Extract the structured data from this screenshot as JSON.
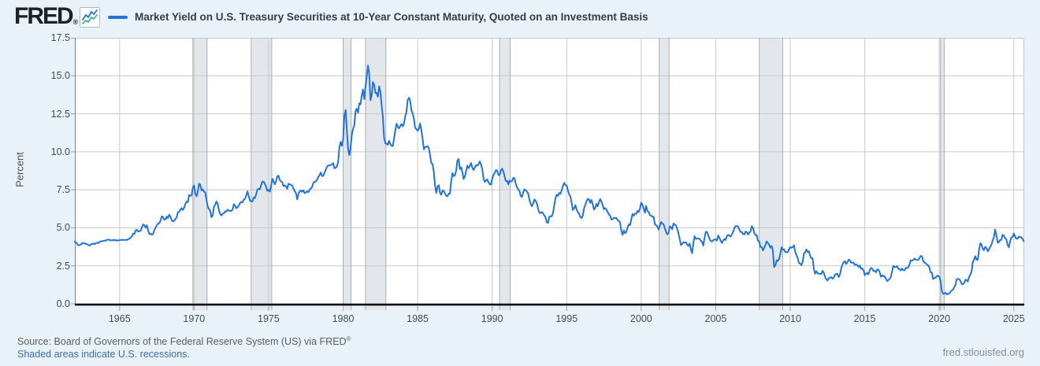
{
  "header": {
    "logo_text": "FRED",
    "logo_mark": "®",
    "title": "Market Yield on U.S. Treasury Securities at 10-Year Constant Maturity, Quoted on an Investment Basis"
  },
  "footer": {
    "source": "Source: Board of Governors of the Federal Reserve System (US) via FRED",
    "source_mark": "®",
    "recession_note": "Shaded areas indicate U.S. recessions.",
    "site": "fred.stlouisfed.org"
  },
  "chart_data": {
    "type": "line",
    "title": "Market Yield on U.S. Treasury Securities at 10-Year Constant Maturity, Quoted on an Investment Basis",
    "ylabel": "Percent",
    "frequency": "monthly",
    "start_year": 1962,
    "x_range": [
      1962.0,
      2025.7
    ],
    "y_range": [
      0,
      17.5
    ],
    "x_ticks": [
      1965,
      1970,
      1975,
      1980,
      1985,
      1990,
      1995,
      2000,
      2005,
      2010,
      2015,
      2020,
      2025
    ],
    "y_ticks": [
      0,
      2.5,
      5,
      7.5,
      10,
      12.5,
      15,
      17.5
    ],
    "y_tick_labels": [
      "0.0",
      "2.5",
      "5.0",
      "7.5",
      "10.0",
      "12.5",
      "15.0",
      "17.5"
    ],
    "grid": true,
    "legend_position": "top",
    "line_color": "#2273d8",
    "recession_color": "#e3e7eb",
    "recession_edge_color": "#a9afb5",
    "recessions": [
      [
        1969.92,
        1970.87
      ],
      [
        1973.83,
        1975.21
      ],
      [
        1980.0,
        1980.54
      ],
      [
        1981.5,
        1982.87
      ],
      [
        1990.5,
        1991.21
      ],
      [
        2001.21,
        2001.87
      ],
      [
        2007.92,
        2009.5
      ],
      [
        2020.08,
        2020.33
      ]
    ],
    "values": [
      4.08,
      4.04,
      3.93,
      3.84,
      3.87,
      3.91,
      4.01,
      3.98,
      3.98,
      3.93,
      3.92,
      3.86,
      3.83,
      3.92,
      3.93,
      3.97,
      3.93,
      3.99,
      4.02,
      4.0,
      4.08,
      4.11,
      4.12,
      4.13,
      4.17,
      4.15,
      4.22,
      4.23,
      4.2,
      4.17,
      4.19,
      4.19,
      4.2,
      4.19,
      4.15,
      4.18,
      4.19,
      4.21,
      4.21,
      4.2,
      4.21,
      4.21,
      4.2,
      4.25,
      4.29,
      4.35,
      4.45,
      4.62,
      4.61,
      4.83,
      4.87,
      4.75,
      4.78,
      4.81,
      5.02,
      5.22,
      5.18,
      5.01,
      5.16,
      4.84,
      4.58,
      4.63,
      4.54,
      4.59,
      4.85,
      5.02,
      5.16,
      5.28,
      5.3,
      5.48,
      5.75,
      5.7,
      5.53,
      5.56,
      5.74,
      5.64,
      5.87,
      5.72,
      5.5,
      5.42,
      5.46,
      5.58,
      5.7,
      6.03,
      6.04,
      6.19,
      6.3,
      6.17,
      6.32,
      6.57,
      6.72,
      6.69,
      7.16,
      7.1,
      7.14,
      7.65,
      7.79,
      7.24,
      7.07,
      7.39,
      7.91,
      7.84,
      7.46,
      7.53,
      7.39,
      7.33,
      6.84,
      6.39,
      6.24,
      6.11,
      5.7,
      5.83,
      6.39,
      6.52,
      6.73,
      6.58,
      6.14,
      5.93,
      5.81,
      5.93,
      5.95,
      6.08,
      6.07,
      6.19,
      6.13,
      6.11,
      6.11,
      6.21,
      6.55,
      6.48,
      6.28,
      6.36,
      6.46,
      6.64,
      6.71,
      6.67,
      6.85,
      6.9,
      7.13,
      7.4,
      7.09,
      6.79,
      6.73,
      6.74,
      6.99,
      6.96,
      7.21,
      7.51,
      7.58,
      7.54,
      7.81,
      8.04,
      8.04,
      7.9,
      7.68,
      7.43,
      7.5,
      7.39,
      7.73,
      8.23,
      8.06,
      7.86,
      8.06,
      8.4,
      8.43,
      8.14,
      8.05,
      8.0,
      7.74,
      7.79,
      7.73,
      7.56,
      7.9,
      7.86,
      7.83,
      7.77,
      7.59,
      7.41,
      7.29,
      6.87,
      7.21,
      7.39,
      7.46,
      7.37,
      7.46,
      7.28,
      7.33,
      7.4,
      7.34,
      7.52,
      7.58,
      7.69,
      7.96,
      8.03,
      8.04,
      8.15,
      8.35,
      8.46,
      8.64,
      8.41,
      8.42,
      8.64,
      8.81,
      9.01,
      9.1,
      9.1,
      9.12,
      9.18,
      9.25,
      8.91,
      8.95,
      9.03,
      9.33,
      10.3,
      10.65,
      10.39,
      10.8,
      12.41,
      12.75,
      11.47,
      10.18,
      9.78,
      10.25,
      11.1,
      11.51,
      11.75,
      12.68,
      12.84,
      12.57,
      13.19,
      13.12,
      13.68,
      14.1,
      13.47,
      14.28,
      14.94,
      15.68,
      15.15,
      13.39,
      13.72,
      14.59,
      14.43,
      13.86,
      13.87,
      13.62,
      14.3,
      13.95,
      13.06,
      12.34,
      10.91,
      10.55,
      10.54,
      10.46,
      10.72,
      10.51,
      10.4,
      10.38,
      10.85,
      11.38,
      11.85,
      11.65,
      11.54,
      11.69,
      11.83,
      11.67,
      11.84,
      12.32,
      12.63,
      13.41,
      13.56,
      13.36,
      12.72,
      12.52,
      12.16,
      11.57,
      11.5,
      11.38,
      11.51,
      11.86,
      11.43,
      10.85,
      10.16,
      10.31,
      10.33,
      10.37,
      10.24,
      9.78,
      9.26,
      9.19,
      8.7,
      7.78,
      7.3,
      7.71,
      7.8,
      7.3,
      7.17,
      7.45,
      7.43,
      7.25,
      7.11,
      7.08,
      7.25,
      7.25,
      8.02,
      8.61,
      8.4,
      8.45,
      8.76,
      9.42,
      9.52,
      8.86,
      8.99,
      8.67,
      8.21,
      8.37,
      8.72,
      9.09,
      8.92,
      9.06,
      9.26,
      8.98,
      8.8,
      8.96,
      9.11,
      9.09,
      9.17,
      9.36,
      9.18,
      8.86,
      8.28,
      8.02,
      8.11,
      8.19,
      8.01,
      7.87,
      7.84,
      8.21,
      8.47,
      8.59,
      8.79,
      8.76,
      8.48,
      8.47,
      8.75,
      8.89,
      8.72,
      8.39,
      8.08,
      8.09,
      7.85,
      8.11,
      8.04,
      8.07,
      8.28,
      8.27,
      7.9,
      7.65,
      7.53,
      7.42,
      7.09,
      7.03,
      7.34,
      7.54,
      7.48,
      7.39,
      7.26,
      6.84,
      6.59,
      6.42,
      6.59,
      6.87,
      6.77,
      6.6,
      6.26,
      5.98,
      5.97,
      6.04,
      5.96,
      5.81,
      5.68,
      5.36,
      5.33,
      5.72,
      5.77,
      5.75,
      5.97,
      6.48,
      6.97,
      7.18,
      7.1,
      7.3,
      7.24,
      7.46,
      7.74,
      7.96,
      7.81,
      7.78,
      7.47,
      7.2,
      7.06,
      6.63,
      6.17,
      6.28,
      6.49,
      6.2,
      6.04,
      5.93,
      5.71,
      5.65,
      5.81,
      6.27,
      6.51,
      6.74,
      6.91,
      6.87,
      6.64,
      6.83,
      6.53,
      6.2,
      6.3,
      6.58,
      6.42,
      6.69,
      6.89,
      6.71,
      6.49,
      6.22,
      6.3,
      6.21,
      6.03,
      5.88,
      5.81,
      5.54,
      5.57,
      5.65,
      5.64,
      5.65,
      5.5,
      5.46,
      5.34,
      4.81,
      4.53,
      4.83,
      4.65,
      4.72,
      5.0,
      5.23,
      5.18,
      5.54,
      5.9,
      5.79,
      5.94,
      5.92,
      6.11,
      6.03,
      6.28,
      6.66,
      6.52,
      6.26,
      5.99,
      6.44,
      6.1,
      6.05,
      5.83,
      5.8,
      5.74,
      5.72,
      5.24,
      5.16,
      5.1,
      4.89,
      5.14,
      5.39,
      5.28,
      5.24,
      4.97,
      4.73,
      4.57,
      4.65,
      5.09,
      5.04,
      4.91,
      5.28,
      5.21,
      5.16,
      4.93,
      4.65,
      4.26,
      3.87,
      3.94,
      4.05,
      4.03,
      4.05,
      3.9,
      3.81,
      3.96,
      3.57,
      3.33,
      3.98,
      4.45,
      4.27,
      4.29,
      4.3,
      4.27,
      4.15,
      4.08,
      3.83,
      4.35,
      4.72,
      4.73,
      4.5,
      4.28,
      4.13,
      4.1,
      4.19,
      4.23,
      4.22,
      4.17,
      4.5,
      4.34,
      4.14,
      4.0,
      4.18,
      4.26,
      4.2,
      4.46,
      4.54,
      4.47,
      4.42,
      4.57,
      4.72,
      4.99,
      5.11,
      5.11,
      5.09,
      4.88,
      4.72,
      4.73,
      4.6,
      4.56,
      4.76,
      4.72,
      4.56,
      4.69,
      4.75,
      5.1,
      5.0,
      4.67,
      4.52,
      4.53,
      4.15,
      4.1,
      3.74,
      3.74,
      3.51,
      3.68,
      3.88,
      4.1,
      4.01,
      3.89,
      3.69,
      3.81,
      3.53,
      2.42,
      2.52,
      2.87,
      2.82,
      2.93,
      3.29,
      3.72,
      3.56,
      3.59,
      3.4,
      3.39,
      3.4,
      3.59,
      3.73,
      3.69,
      3.73,
      3.85,
      3.42,
      3.2,
      3.01,
      2.7,
      2.65,
      2.54,
      2.76,
      3.29,
      3.39,
      3.58,
      3.41,
      3.46,
      3.17,
      3.0,
      3.0,
      2.3,
      1.98,
      2.15,
      2.01,
      1.98,
      1.97,
      1.97,
      2.17,
      2.05,
      1.8,
      1.62,
      1.53,
      1.68,
      1.72,
      1.75,
      1.65,
      1.72,
      1.91,
      1.98,
      1.96,
      1.76,
      1.93,
      2.3,
      2.58,
      2.74,
      2.81,
      2.62,
      2.72,
      2.9,
      2.86,
      2.71,
      2.72,
      2.71,
      2.56,
      2.6,
      2.54,
      2.42,
      2.53,
      2.3,
      2.33,
      2.21,
      1.88,
      1.98,
      2.04,
      1.94,
      2.2,
      2.36,
      2.32,
      2.17,
      2.17,
      2.07,
      2.26,
      2.24,
      2.09,
      1.78,
      1.89,
      1.81,
      1.81,
      1.64,
      1.5,
      1.56,
      1.63,
      1.76,
      2.14,
      2.49,
      2.43,
      2.42,
      2.48,
      2.3,
      2.3,
      2.19,
      2.32,
      2.21,
      2.2,
      2.36,
      2.35,
      2.4,
      2.58,
      2.86,
      2.84,
      2.87,
      2.98,
      2.91,
      2.89,
      2.89,
      3.0,
      3.15,
      3.12,
      2.83,
      2.71,
      2.68,
      2.57,
      2.53,
      2.4,
      2.07,
      2.06,
      1.63,
      1.7,
      1.71,
      1.81,
      1.86,
      1.76,
      1.5,
      0.87,
      0.66,
      0.67,
      0.73,
      0.62,
      0.65,
      0.68,
      0.79,
      0.87,
      0.93,
      1.08,
      1.26,
      1.61,
      1.64,
      1.62,
      1.52,
      1.32,
      1.28,
      1.37,
      1.58,
      1.56,
      1.47,
      1.76,
      1.93,
      2.13,
      2.75,
      2.9,
      3.14,
      2.9,
      2.9,
      3.52,
      3.98,
      3.89,
      3.62,
      3.53,
      3.75,
      3.66,
      3.46,
      3.57,
      3.75,
      3.9,
      4.17,
      4.38,
      4.88,
      4.5,
      4.02,
      4.06,
      4.21,
      4.21,
      4.54,
      4.48,
      4.31,
      4.25,
      3.87,
      3.72,
      4.1,
      4.36,
      4.39,
      4.63,
      4.45,
      4.28,
      4.28,
      4.42,
      4.38,
      4.39,
      4.26,
      4.12
    ]
  }
}
